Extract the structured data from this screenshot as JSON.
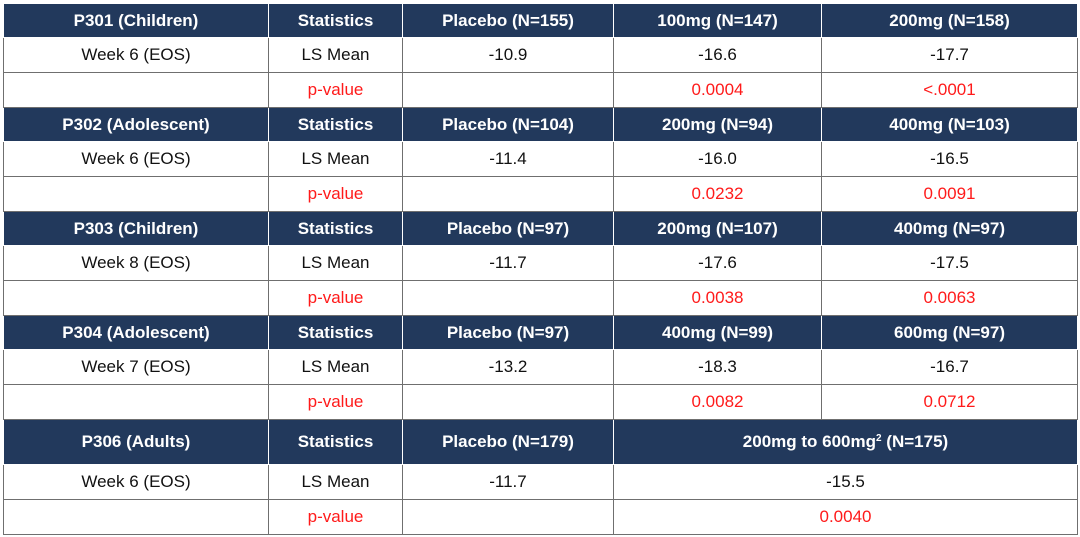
{
  "blocks": [
    {
      "study": "P301 (Children)",
      "stat_header": "Statistics",
      "arm1": "Placebo (N=155)",
      "arm2": "100mg (N=147)",
      "arm3": "200mg (N=158)",
      "timepoint": "Week 6 (EOS)",
      "mean_label": "LS Mean",
      "mean1": "-10.9",
      "mean2": "-16.6",
      "mean3": "-17.7",
      "p_label": "p-value",
      "p2": "0.0004",
      "p3": "<.0001"
    },
    {
      "study": "P302 (Adolescent)",
      "stat_header": "Statistics",
      "arm1": "Placebo (N=104)",
      "arm2": "200mg (N=94)",
      "arm3": "400mg (N=103)",
      "timepoint": "Week 6 (EOS)",
      "mean_label": "LS Mean",
      "mean1": "-11.4",
      "mean2": "-16.0",
      "mean3": "-16.5",
      "p_label": "p-value",
      "p2": "0.0232",
      "p3": "0.0091"
    },
    {
      "study": "P303 (Children)",
      "stat_header": "Statistics",
      "arm1": "Placebo (N=97)",
      "arm2": "200mg (N=107)",
      "arm3": "400mg (N=97)",
      "timepoint": "Week 8 (EOS)",
      "mean_label": "LS Mean",
      "mean1": "-11.7",
      "mean2": "-17.6",
      "mean3": "-17.5",
      "p_label": "p-value",
      "p2": "0.0038",
      "p3": "0.0063"
    },
    {
      "study": "P304 (Adolescent)",
      "stat_header": "Statistics",
      "arm1": "Placebo (N=97)",
      "arm2": "400mg (N=99)",
      "arm3": "600mg (N=97)",
      "timepoint": "Week 7 (EOS)",
      "mean_label": "LS Mean",
      "mean1": "-13.2",
      "mean2": "-18.3",
      "mean3": "-16.7",
      "p_label": "p-value",
      "p2": "0.0082",
      "p3": "0.0712"
    },
    {
      "study": "P306 (Adults)",
      "stat_header": "Statistics",
      "arm1": "Placebo (N=179)",
      "arm2_pre": "200mg to 600mg",
      "arm2_sup": "2",
      "arm2_post": " (N=175)",
      "timepoint": "Week 6 (EOS)",
      "mean_label": "LS Mean",
      "mean1": "-11.7",
      "mean2": "-15.5",
      "p_label": "p-value",
      "p2": "0.0040"
    }
  ],
  "colors": {
    "header_bg": "#22395c",
    "header_text": "#ffffff",
    "pvalue": "#ff1a1a"
  }
}
